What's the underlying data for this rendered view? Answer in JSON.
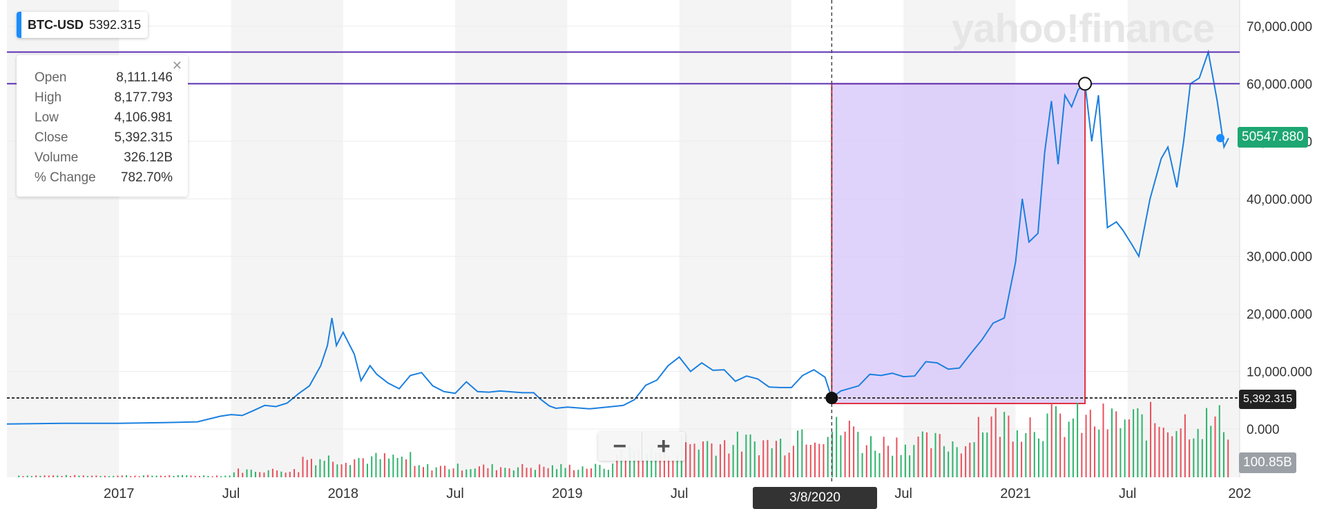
{
  "ticker": {
    "symbol": "BTC-USD",
    "price": "5392.315"
  },
  "watermark": "yahoo!finance",
  "ohlc": [
    {
      "key": "Open",
      "value": "8,111.146"
    },
    {
      "key": "High",
      "value": "8,177.793"
    },
    {
      "key": "Low",
      "value": "4,106.981"
    },
    {
      "key": "Close",
      "value": "5,392.315"
    },
    {
      "key": "Volume",
      "value": "326.12B"
    },
    {
      "key": "% Change",
      "value": "782.70%"
    }
  ],
  "ohlc_close_icon": "close-icon",
  "zoom": {
    "minus": "−",
    "plus": "+"
  },
  "crosshair": {
    "date_label": "3/8/2020",
    "price_label": "5,392.315"
  },
  "last_price_label": "50547.880",
  "volume_label": "100.85B",
  "colors": {
    "line": "#1a7fe0",
    "up_volume": "#2db36b",
    "down_volume": "#e8505b",
    "measure_fill": "#d8c8fa",
    "measure_border": "#e03040",
    "hline": "#5b2fb5"
  },
  "chart_data": {
    "type": "line",
    "series": [
      {
        "name": "BTC-USD",
        "points": [
          [
            2016.5,
            870
          ],
          [
            2016.75,
            980
          ],
          [
            2017.0,
            1000
          ],
          [
            2017.2,
            1100
          ],
          [
            2017.35,
            1250
          ],
          [
            2017.45,
            2200
          ],
          [
            2017.5,
            2500
          ],
          [
            2017.55,
            2350
          ],
          [
            2017.6,
            3200
          ],
          [
            2017.65,
            4100
          ],
          [
            2017.7,
            3900
          ],
          [
            2017.75,
            4500
          ],
          [
            2017.8,
            6100
          ],
          [
            2017.85,
            7500
          ],
          [
            2017.9,
            11000
          ],
          [
            2017.93,
            14500
          ],
          [
            2017.95,
            19300
          ],
          [
            2017.97,
            14500
          ],
          [
            2018.0,
            16800
          ],
          [
            2018.05,
            13000
          ],
          [
            2018.08,
            8400
          ],
          [
            2018.12,
            11000
          ],
          [
            2018.15,
            9500
          ],
          [
            2018.2,
            8000
          ],
          [
            2018.25,
            7000
          ],
          [
            2018.3,
            9300
          ],
          [
            2018.35,
            9800
          ],
          [
            2018.4,
            7500
          ],
          [
            2018.45,
            6500
          ],
          [
            2018.5,
            6200
          ],
          [
            2018.55,
            8200
          ],
          [
            2018.6,
            6500
          ],
          [
            2018.65,
            6400
          ],
          [
            2018.7,
            6600
          ],
          [
            2018.8,
            6300
          ],
          [
            2018.85,
            6300
          ],
          [
            2018.88,
            5200
          ],
          [
            2018.92,
            4000
          ],
          [
            2018.95,
            3600
          ],
          [
            2019.0,
            3800
          ],
          [
            2019.1,
            3500
          ],
          [
            2019.2,
            3900
          ],
          [
            2019.25,
            4100
          ],
          [
            2019.3,
            5100
          ],
          [
            2019.35,
            7600
          ],
          [
            2019.4,
            8500
          ],
          [
            2019.45,
            11000
          ],
          [
            2019.5,
            12500
          ],
          [
            2019.55,
            10000
          ],
          [
            2019.6,
            11500
          ],
          [
            2019.65,
            10200
          ],
          [
            2019.7,
            10300
          ],
          [
            2019.75,
            8300
          ],
          [
            2019.8,
            9200
          ],
          [
            2019.85,
            8700
          ],
          [
            2019.9,
            7300
          ],
          [
            2019.95,
            7200
          ],
          [
            2020.0,
            7200
          ],
          [
            2020.05,
            9300
          ],
          [
            2020.1,
            10300
          ],
          [
            2020.15,
            9000
          ],
          [
            2020.18,
            5392
          ],
          [
            2020.22,
            6600
          ],
          [
            2020.3,
            7500
          ],
          [
            2020.35,
            9500
          ],
          [
            2020.4,
            9300
          ],
          [
            2020.45,
            9700
          ],
          [
            2020.5,
            9100
          ],
          [
            2020.55,
            9200
          ],
          [
            2020.6,
            11700
          ],
          [
            2020.65,
            11500
          ],
          [
            2020.7,
            10400
          ],
          [
            2020.75,
            10600
          ],
          [
            2020.8,
            13100
          ],
          [
            2020.85,
            15500
          ],
          [
            2020.9,
            18400
          ],
          [
            2020.95,
            19300
          ],
          [
            2021.0,
            29000
          ],
          [
            2021.03,
            40000
          ],
          [
            2021.06,
            32500
          ],
          [
            2021.1,
            34000
          ],
          [
            2021.13,
            48000
          ],
          [
            2021.16,
            57000
          ],
          [
            2021.19,
            46000
          ],
          [
            2021.22,
            58000
          ],
          [
            2021.25,
            56000
          ],
          [
            2021.28,
            59000
          ],
          [
            2021.31,
            60000
          ],
          [
            2021.34,
            50000
          ],
          [
            2021.37,
            58000
          ],
          [
            2021.41,
            35000
          ],
          [
            2021.45,
            36000
          ],
          [
            2021.48,
            34500
          ],
          [
            2021.52,
            32000
          ],
          [
            2021.55,
            30000
          ],
          [
            2021.6,
            40000
          ],
          [
            2021.65,
            47000
          ],
          [
            2021.68,
            49000
          ],
          [
            2021.72,
            42000
          ],
          [
            2021.75,
            50000
          ],
          [
            2021.78,
            60000
          ],
          [
            2021.82,
            61000
          ],
          [
            2021.86,
            65500
          ],
          [
            2021.9,
            57000
          ],
          [
            2021.93,
            49000
          ],
          [
            2021.95,
            50547.88
          ]
        ]
      }
    ],
    "x_ticks": [
      "2017",
      "Jul",
      "2018",
      "Jul",
      "2019",
      "Jul",
      "2020",
      "Jul",
      "2021",
      "Jul",
      "202"
    ],
    "y_ticks": [
      "0.000",
      "10,000.000",
      "20,000.000",
      "30,000.000",
      "40,000.000",
      "50,000.000",
      "60,000.000",
      "70,000.000"
    ],
    "xlim": [
      2016.5,
      2022.0
    ],
    "ylim": [
      -5000,
      75000
    ],
    "horizontal_lines": [
      65500,
      60000,
      5392.315
    ],
    "measure_range": {
      "x": [
        2020.18,
        2021.31
      ],
      "y": [
        5392.315,
        60000
      ]
    },
    "volume": {
      "max_shown": "100.85B"
    },
    "grid": true
  }
}
